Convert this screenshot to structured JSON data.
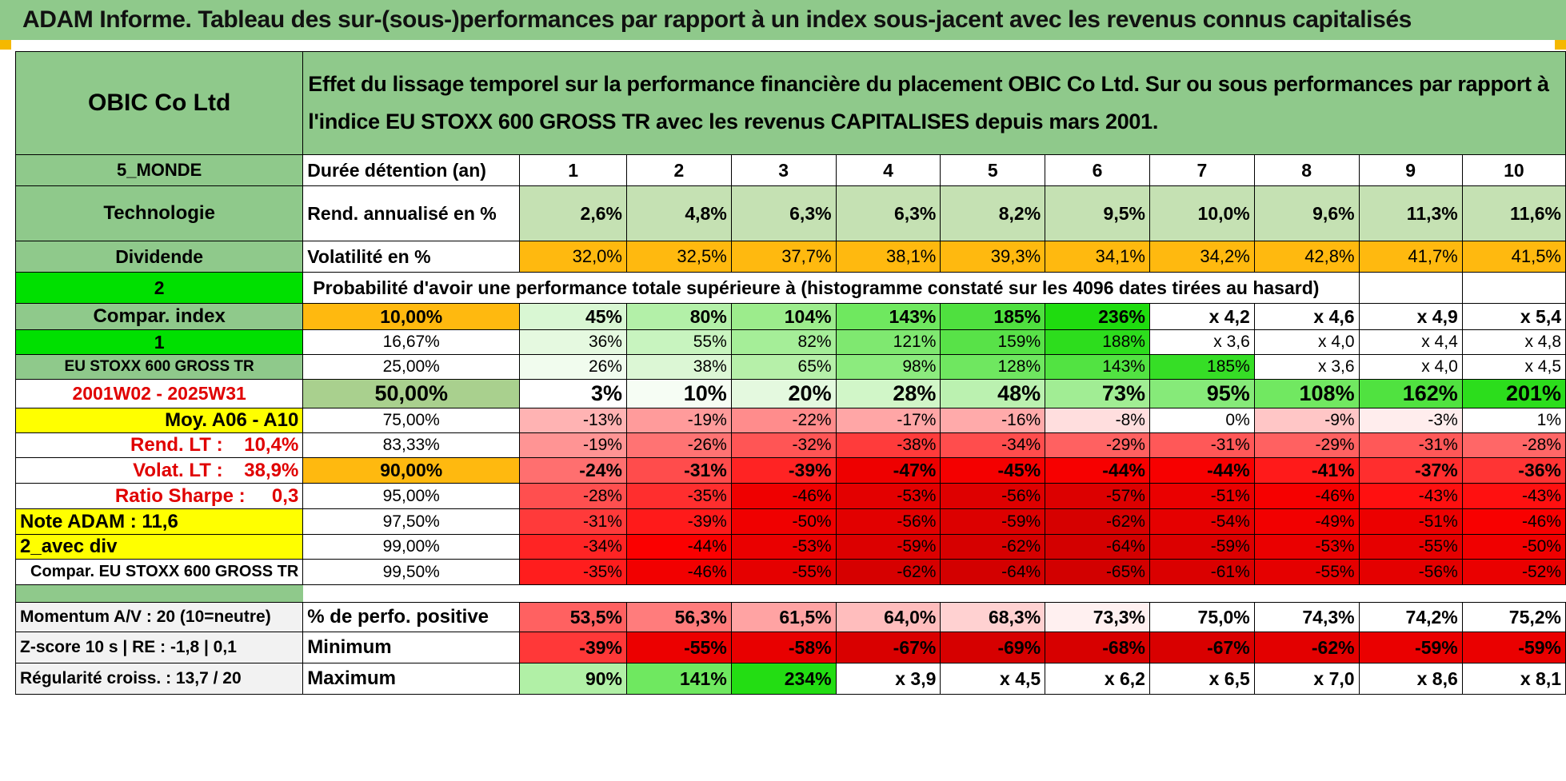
{
  "title": "ADAM Informe. Tableau des sur-(sous-)performances par rapport à un index sous-jacent avec les revenus connus capitalisés",
  "company": "OBIC Co Ltd",
  "description": "Effet du lissage temporel sur la performance financière du placement OBIC Co Ltd. Sur ou sous performances par rapport à l'indice EU STOXX 600 GROSS TR avec les revenus CAPITALISES depuis mars 2001.",
  "side_labels": {
    "region": "5_MONDE",
    "sector": "Technologie",
    "style": "Dividende",
    "val_2": "2",
    "compar_index": "Compar. index",
    "val_1": "1",
    "index_name": "EU STOXX 600 GROSS TR",
    "period": "2001W02 - 2025W31",
    "moy": "Moy. A06 - A10",
    "rend_lt": "Rend. LT :    10,4%",
    "volat_lt": "Volat. LT :    38,9%",
    "sharpe": "Ratio Sharpe :     0,3",
    "note": "Note ADAM : 11,6",
    "avec_div": "2_avec div",
    "compar_eu": "Compar. EU STOXX 600 GROSS TR"
  },
  "row_labels": {
    "duree": "Durée détention (an)",
    "rend": "Rend. annualisé en %",
    "vol": "Volatilité en %",
    "proba": "Probabilité d'avoir une performance totale supérieure à (histogramme constaté sur les 4096 dates tirées au hasard)"
  },
  "years": [
    "1",
    "2",
    "3",
    "4",
    "5",
    "6",
    "7",
    "8",
    "9",
    "10"
  ],
  "rend": [
    "2,6%",
    "4,8%",
    "6,3%",
    "6,3%",
    "8,2%",
    "9,5%",
    "10,0%",
    "9,6%",
    "11,3%",
    "11,6%"
  ],
  "vol": [
    "32,0%",
    "32,5%",
    "37,7%",
    "38,1%",
    "39,3%",
    "34,1%",
    "34,2%",
    "42,8%",
    "41,7%",
    "41,5%"
  ],
  "percentiles": [
    {
      "p": "10,00%",
      "v": [
        "45%",
        "80%",
        "104%",
        "143%",
        "185%",
        "236%",
        "x 4,2",
        "x 4,6",
        "x 4,9",
        "x 5,4"
      ]
    },
    {
      "p": "16,67%",
      "v": [
        "36%",
        "55%",
        "82%",
        "121%",
        "159%",
        "188%",
        "x 3,6",
        "x 4,0",
        "x 4,4",
        "x 4,8"
      ]
    },
    {
      "p": "25,00%",
      "v": [
        "26%",
        "38%",
        "65%",
        "98%",
        "128%",
        "143%",
        "185%",
        "x 3,6",
        "x 4,0",
        "x 4,5"
      ]
    },
    {
      "p": "50,00%",
      "v": [
        "3%",
        "10%",
        "20%",
        "28%",
        "48%",
        "73%",
        "95%",
        "108%",
        "162%",
        "201%"
      ]
    },
    {
      "p": "75,00%",
      "v": [
        "-13%",
        "-19%",
        "-22%",
        "-17%",
        "-16%",
        "-8%",
        "0%",
        "-9%",
        "-3%",
        "1%"
      ]
    },
    {
      "p": "83,33%",
      "v": [
        "-19%",
        "-26%",
        "-32%",
        "-38%",
        "-34%",
        "-29%",
        "-31%",
        "-29%",
        "-31%",
        "-28%"
      ]
    },
    {
      "p": "90,00%",
      "v": [
        "-24%",
        "-31%",
        "-39%",
        "-47%",
        "-45%",
        "-44%",
        "-44%",
        "-41%",
        "-37%",
        "-36%"
      ]
    },
    {
      "p": "95,00%",
      "v": [
        "-28%",
        "-35%",
        "-46%",
        "-53%",
        "-56%",
        "-57%",
        "-51%",
        "-46%",
        "-43%",
        "-43%"
      ]
    },
    {
      "p": "97,50%",
      "v": [
        "-31%",
        "-39%",
        "-50%",
        "-56%",
        "-59%",
        "-62%",
        "-54%",
        "-49%",
        "-51%",
        "-46%"
      ]
    },
    {
      "p": "99,00%",
      "v": [
        "-34%",
        "-44%",
        "-53%",
        "-59%",
        "-62%",
        "-64%",
        "-59%",
        "-53%",
        "-55%",
        "-50%"
      ]
    },
    {
      "p": "99,50%",
      "v": [
        "-35%",
        "-46%",
        "-55%",
        "-62%",
        "-64%",
        "-65%",
        "-61%",
        "-55%",
        "-56%",
        "-52%"
      ]
    }
  ],
  "stats": {
    "momentum": "Momentum A/V : 20 (10=neutre)",
    "zscore": "Z-score 10 s | RE : -1,8 | 0,1",
    "regularite": "Régularité croiss. : 13,7 / 20",
    "pos_label": "% de perfo. positive",
    "min_label": "Minimum",
    "max_label": "Maximum",
    "pos": [
      "53,5%",
      "56,3%",
      "61,5%",
      "64,0%",
      "68,3%",
      "73,3%",
      "75,0%",
      "74,3%",
      "74,2%",
      "75,2%"
    ],
    "min": [
      "-39%",
      "-55%",
      "-58%",
      "-67%",
      "-69%",
      "-68%",
      "-67%",
      "-62%",
      "-59%",
      "-59%"
    ],
    "max": [
      "90%",
      "141%",
      "234%",
      "x 3,9",
      "x 4,5",
      "x 6,2",
      "x 6,5",
      "x 7,0",
      "x 8,6",
      "x 8,1"
    ]
  },
  "colors": {
    "header_green": "#8fc98b",
    "rend_bg": "#c5e1b3",
    "vol_bg": "#ffb90f",
    "yellow": "#ffff00",
    "bright_green": "#00e000",
    "red_text": "#e00000",
    "pale_green": "#a9d08e"
  }
}
